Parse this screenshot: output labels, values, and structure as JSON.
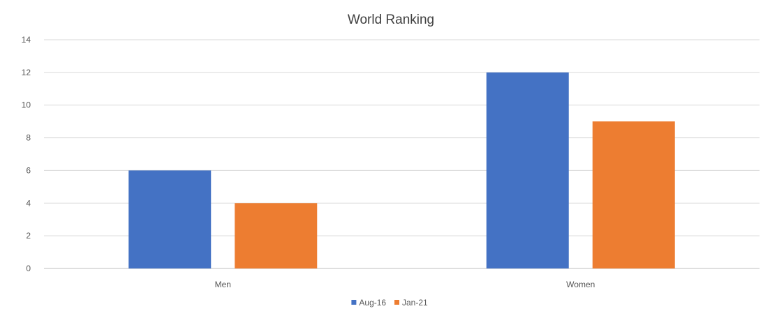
{
  "chart_data": {
    "type": "bar",
    "title": "World Ranking",
    "xlabel": "",
    "ylabel": "",
    "categories": [
      "Men",
      "Women"
    ],
    "series": [
      {
        "name": "Aug-16",
        "values": [
          6,
          12
        ],
        "color": "#4472C4"
      },
      {
        "name": "Jan-21",
        "values": [
          4,
          9
        ],
        "color": "#ED7D31"
      }
    ],
    "ylim": [
      0,
      14
    ],
    "yticks": [
      "0",
      "2",
      "4",
      "6",
      "8",
      "10",
      "12",
      "14"
    ],
    "grid": true,
    "legend": "bottom"
  }
}
